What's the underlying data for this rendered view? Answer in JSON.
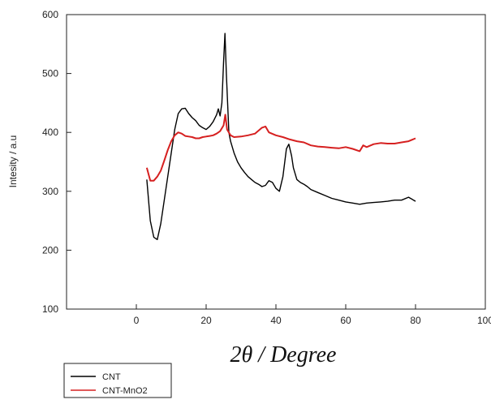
{
  "chart_data": {
    "type": "line",
    "xlabel": "2θ / Degree",
    "ylabel": "Intesity / a.u",
    "xlim": [
      -20,
      100
    ],
    "ylim": [
      100,
      600
    ],
    "xticks": [
      0,
      20,
      40,
      60,
      80,
      100
    ],
    "yticks": [
      100,
      200,
      300,
      400,
      500,
      600
    ],
    "grid": false,
    "legend_position": "bottom-left",
    "series": [
      {
        "name": "CNT",
        "color": "#000000",
        "points": [
          [
            3,
            320
          ],
          [
            4,
            250
          ],
          [
            5,
            222
          ],
          [
            6,
            218
          ],
          [
            7,
            245
          ],
          [
            8,
            285
          ],
          [
            9,
            325
          ],
          [
            10,
            365
          ],
          [
            11,
            405
          ],
          [
            12,
            432
          ],
          [
            13,
            440
          ],
          [
            14,
            441
          ],
          [
            15,
            432
          ],
          [
            16,
            425
          ],
          [
            17,
            420
          ],
          [
            18,
            412
          ],
          [
            19,
            408
          ],
          [
            20,
            405
          ],
          [
            21,
            410
          ],
          [
            22,
            418
          ],
          [
            23,
            430
          ],
          [
            23.5,
            440
          ],
          [
            24,
            428
          ],
          [
            24.5,
            450
          ],
          [
            25,
            520
          ],
          [
            25.4,
            568
          ],
          [
            25.8,
            500
          ],
          [
            26.5,
            400
          ],
          [
            27,
            385
          ],
          [
            28,
            365
          ],
          [
            29,
            350
          ],
          [
            30,
            340
          ],
          [
            31,
            332
          ],
          [
            32,
            325
          ],
          [
            33,
            320
          ],
          [
            34,
            315
          ],
          [
            35,
            312
          ],
          [
            36,
            308
          ],
          [
            37,
            310
          ],
          [
            38,
            318
          ],
          [
            39,
            315
          ],
          [
            40,
            305
          ],
          [
            41,
            300
          ],
          [
            42,
            325
          ],
          [
            43,
            372
          ],
          [
            43.7,
            380
          ],
          [
            44.5,
            360
          ],
          [
            45,
            340
          ],
          [
            46,
            320
          ],
          [
            47,
            315
          ],
          [
            48,
            312
          ],
          [
            49,
            308
          ],
          [
            50,
            303
          ],
          [
            52,
            298
          ],
          [
            54,
            293
          ],
          [
            56,
            288
          ],
          [
            58,
            285
          ],
          [
            60,
            282
          ],
          [
            62,
            280
          ],
          [
            64,
            278
          ],
          [
            66,
            280
          ],
          [
            68,
            281
          ],
          [
            70,
            282
          ],
          [
            72,
            283
          ],
          [
            74,
            285
          ],
          [
            76,
            285
          ],
          [
            78,
            290
          ],
          [
            80,
            283
          ]
        ]
      },
      {
        "name": "CNT-MnO2",
        "color": "#d62020",
        "points": [
          [
            3,
            340
          ],
          [
            4,
            318
          ],
          [
            5,
            318
          ],
          [
            6,
            325
          ],
          [
            7,
            335
          ],
          [
            8,
            352
          ],
          [
            9,
            370
          ],
          [
            10,
            385
          ],
          [
            11,
            395
          ],
          [
            12,
            400
          ],
          [
            13,
            398
          ],
          [
            14,
            394
          ],
          [
            15,
            393
          ],
          [
            16,
            392
          ],
          [
            17,
            390
          ],
          [
            18,
            390
          ],
          [
            19,
            392
          ],
          [
            20,
            393
          ],
          [
            21,
            394
          ],
          [
            22,
            395
          ],
          [
            23,
            398
          ],
          [
            24,
            402
          ],
          [
            25,
            412
          ],
          [
            25.5,
            430
          ],
          [
            26,
            405
          ],
          [
            27,
            395
          ],
          [
            28,
            392
          ],
          [
            30,
            393
          ],
          [
            32,
            395
          ],
          [
            34,
            398
          ],
          [
            36,
            408
          ],
          [
            37,
            410
          ],
          [
            38,
            400
          ],
          [
            40,
            395
          ],
          [
            42,
            392
          ],
          [
            44,
            388
          ],
          [
            46,
            385
          ],
          [
            48,
            383
          ],
          [
            50,
            378
          ],
          [
            52,
            376
          ],
          [
            54,
            375
          ],
          [
            56,
            374
          ],
          [
            58,
            373
          ],
          [
            60,
            375
          ],
          [
            62,
            372
          ],
          [
            64,
            368
          ],
          [
            65,
            378
          ],
          [
            66,
            375
          ],
          [
            68,
            380
          ],
          [
            70,
            382
          ],
          [
            72,
            381
          ],
          [
            74,
            381
          ],
          [
            76,
            383
          ],
          [
            78,
            385
          ],
          [
            80,
            390
          ]
        ]
      }
    ]
  },
  "legend": {
    "items": [
      {
        "label": "CNT",
        "color": "#000000"
      },
      {
        "label": "CNT-MnO2",
        "color": "#d62020"
      }
    ]
  }
}
